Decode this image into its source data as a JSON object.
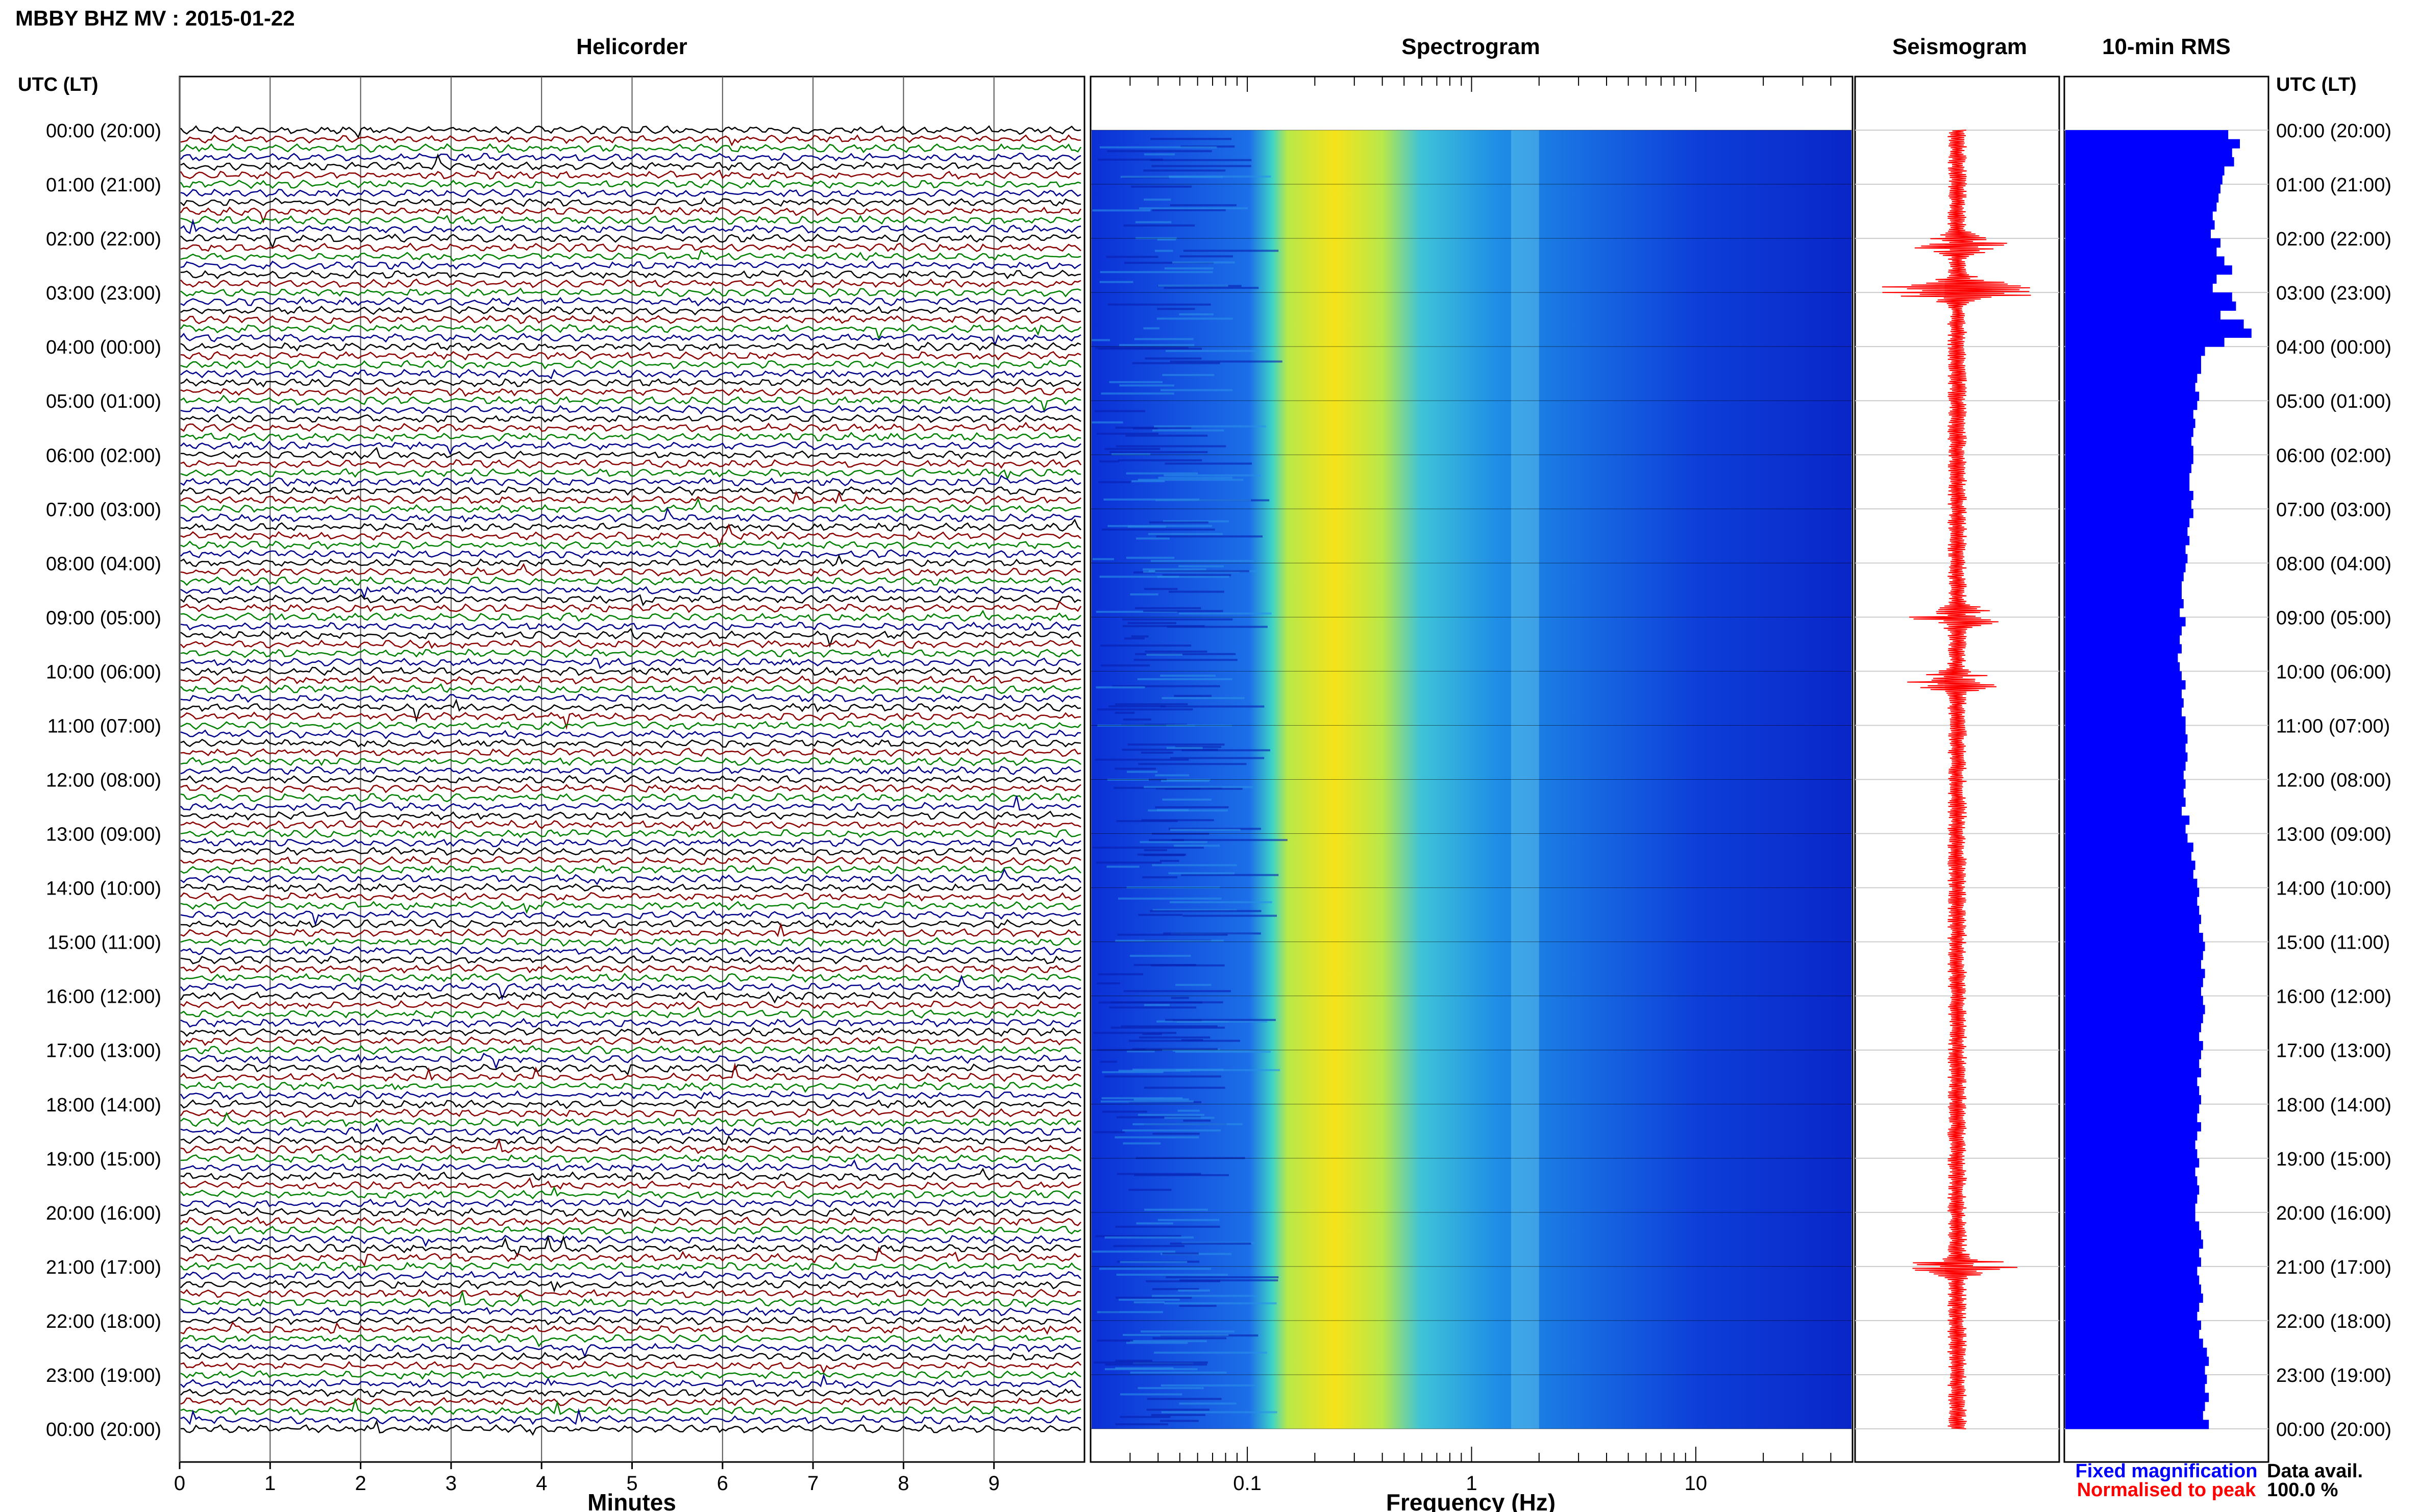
{
  "header": {
    "title": "MBBY BHZ MV : 2015-01-22",
    "utc_lt_label": "UTC (LT)"
  },
  "panels": {
    "helicorder": "Helicorder",
    "spectrogram": "Spectrogram",
    "seismogram": "Seismogram",
    "rms": "10-min RMS"
  },
  "footer": {
    "fixed_magnification": "Fixed magnification",
    "normalised_to_peak": "Normalised to peak",
    "data_avail_label": "Data avail.",
    "data_avail_value": "100.0 %"
  },
  "colors": {
    "trace_cycle": [
      "#000000",
      "#8b0000",
      "#008000",
      "#00008b"
    ],
    "fixed_magnification": "#0000ff",
    "normalised_to_peak": "#ff0000",
    "rms_bar": "#0000ff"
  },
  "chart_data": [
    {
      "type": "line",
      "name": "helicorder",
      "title": "Helicorder",
      "xlabel": "Minutes",
      "x_ticks": [
        0,
        1,
        2,
        3,
        4,
        5,
        6,
        7,
        8,
        9
      ],
      "xlim": [
        0,
        10
      ],
      "time_labels": [
        "00:00 (20:00)",
        "01:00 (21:00)",
        "02:00 (22:00)",
        "03:00 (23:00)",
        "04:00 (00:00)",
        "05:00 (01:00)",
        "06:00 (02:00)",
        "07:00 (03:00)",
        "08:00 (04:00)",
        "09:00 (05:00)",
        "10:00 (06:00)",
        "11:00 (07:00)",
        "12:00 (08:00)",
        "13:00 (09:00)",
        "14:00 (10:00)",
        "15:00 (11:00)",
        "16:00 (12:00)",
        "17:00 (13:00)",
        "18:00 (14:00)",
        "19:00 (15:00)",
        "20:00 (16:00)",
        "21:00 (17:00)",
        "22:00 (18:00)",
        "23:00 (19:00)",
        "00:00 (20:00)"
      ],
      "traces_per_hour": 6,
      "trace_minutes": 10
    },
    {
      "type": "heatmap",
      "name": "spectrogram",
      "title": "Spectrogram",
      "xlabel": "Frequency (Hz)",
      "x_scale": "log",
      "x_ticks": [
        0.1,
        1,
        10
      ],
      "x_tick_labels": [
        "0.1",
        "1",
        "10"
      ],
      "xlim": [
        0.02,
        50
      ],
      "peak_band_hz": [
        0.15,
        0.4
      ],
      "secondary_band_hz": [
        1.5,
        2.0
      ]
    },
    {
      "type": "line",
      "name": "seismogram",
      "title": "Seismogram",
      "normalised_to_peak": true,
      "burst_hours": [
        2.1,
        2.9,
        3.0,
        9.0,
        10.2,
        21.0
      ]
    },
    {
      "type": "bar",
      "name": "rms",
      "title": "10-min RMS",
      "values": [
        0.84,
        0.9,
        0.86,
        0.87,
        0.82,
        0.81,
        0.8,
        0.79,
        0.78,
        0.76,
        0.77,
        0.75,
        0.8,
        0.78,
        0.82,
        0.86,
        0.78,
        0.76,
        0.86,
        0.88,
        0.8,
        0.92,
        0.96,
        0.82,
        0.72,
        0.7,
        0.7,
        0.68,
        0.67,
        0.69,
        0.68,
        0.66,
        0.67,
        0.66,
        0.65,
        0.66,
        0.66,
        0.65,
        0.64,
        0.64,
        0.66,
        0.65,
        0.66,
        0.64,
        0.63,
        0.64,
        0.62,
        0.63,
        0.62,
        0.61,
        0.6,
        0.6,
        0.61,
        0.59,
        0.62,
        0.6,
        0.59,
        0.6,
        0.58,
        0.59,
        0.6,
        0.62,
        0.6,
        0.61,
        0.6,
        0.62,
        0.62,
        0.63,
        0.62,
        0.63,
        0.62,
        0.61,
        0.62,
        0.61,
        0.62,
        0.6,
        0.64,
        0.62,
        0.63,
        0.66,
        0.65,
        0.67,
        0.66,
        0.68,
        0.69,
        0.68,
        0.69,
        0.7,
        0.69,
        0.71,
        0.72,
        0.71,
        0.7,
        0.72,
        0.71,
        0.7,
        0.71,
        0.72,
        0.71,
        0.7,
        0.69,
        0.71,
        0.7,
        0.69,
        0.7,
        0.68,
        0.69,
        0.7,
        0.69,
        0.68,
        0.7,
        0.68,
        0.67,
        0.68,
        0.69,
        0.67,
        0.68,
        0.69,
        0.68,
        0.67,
        0.67,
        0.69,
        0.7,
        0.71,
        0.69,
        0.7,
        0.68,
        0.69,
        0.7,
        0.71,
        0.69,
        0.68,
        0.7,
        0.69,
        0.71,
        0.73,
        0.74,
        0.72,
        0.73,
        0.72,
        0.74,
        0.72,
        0.71,
        0.74
      ]
    }
  ]
}
